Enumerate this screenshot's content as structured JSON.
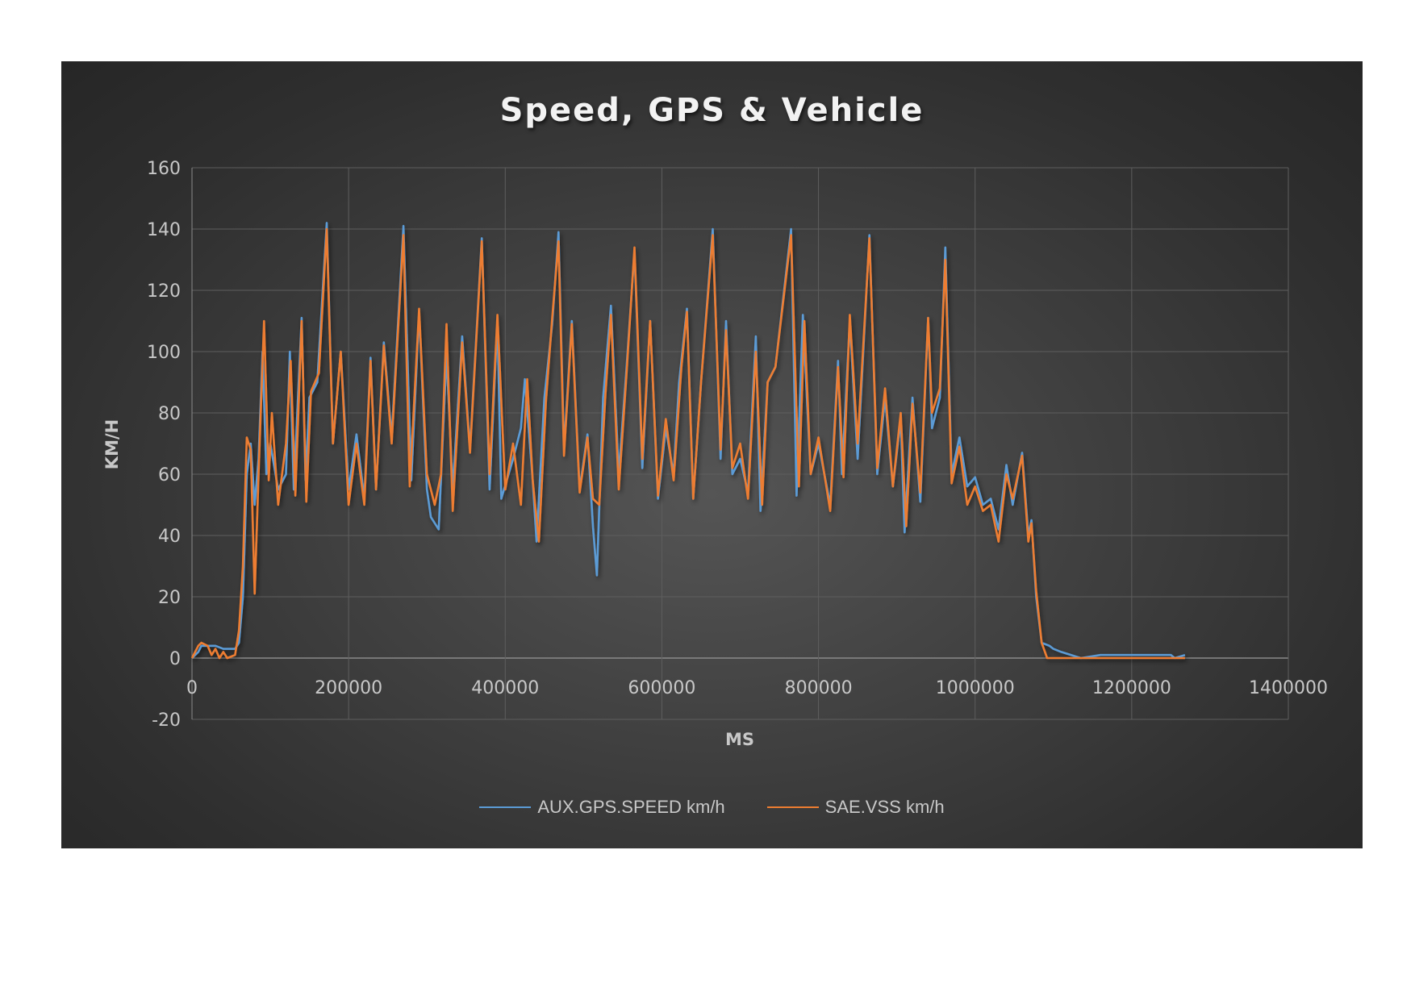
{
  "chart": {
    "title": "Speed, GPS & Vehicle",
    "xlabel": "MS",
    "ylabel": "KM/H",
    "y_ticks": [
      "160",
      "140",
      "120",
      "100",
      "80",
      "60",
      "40",
      "20",
      "0",
      "-20"
    ],
    "x_ticks": [
      "0",
      "200000",
      "400000",
      "600000",
      "800000",
      "1000000",
      "1200000",
      "1400000"
    ],
    "background": "#2f2f2f",
    "legend": [
      {
        "label": "AUX.GPS.SPEED km/h",
        "color": "#5b9bd5"
      },
      {
        "label": "SAE.VSS km/h",
        "color": "#ed7d31"
      }
    ]
  },
  "chart_data": {
    "type": "line",
    "title": "Speed, GPS & Vehicle",
    "xlabel": "MS",
    "ylabel": "KM/H",
    "xlim": [
      0,
      1400000
    ],
    "ylim": [
      -20,
      160
    ],
    "x_ticks": [
      0,
      200000,
      400000,
      600000,
      800000,
      1000000,
      1200000,
      1400000
    ],
    "y_ticks": [
      -20,
      0,
      20,
      40,
      60,
      80,
      100,
      120,
      140,
      160
    ],
    "grid": true,
    "legend_position": "bottom",
    "series": [
      {
        "name": "AUX.GPS.SPEED km/h",
        "color": "#5b9bd5",
        "points": [
          [
            0,
            0
          ],
          [
            8000,
            2
          ],
          [
            12000,
            4
          ],
          [
            30000,
            4
          ],
          [
            40000,
            3
          ],
          [
            55000,
            3
          ],
          [
            60000,
            5
          ],
          [
            65000,
            20
          ],
          [
            70000,
            60
          ],
          [
            75000,
            70
          ],
          [
            80000,
            50
          ],
          [
            85000,
            65
          ],
          [
            90000,
            100
          ],
          [
            95000,
            60
          ],
          [
            100000,
            70
          ],
          [
            110000,
            55
          ],
          [
            120000,
            60
          ],
          [
            125000,
            100
          ],
          [
            130000,
            55
          ],
          [
            140000,
            111
          ],
          [
            145000,
            58
          ],
          [
            150000,
            85
          ],
          [
            160000,
            90
          ],
          [
            172000,
            142
          ],
          [
            180000,
            70
          ],
          [
            190000,
            100
          ],
          [
            200000,
            55
          ],
          [
            210000,
            73
          ],
          [
            220000,
            52
          ],
          [
            228000,
            98
          ],
          [
            235000,
            55
          ],
          [
            245000,
            103
          ],
          [
            255000,
            72
          ],
          [
            270000,
            141
          ],
          [
            280000,
            58
          ],
          [
            290000,
            113
          ],
          [
            300000,
            55
          ],
          [
            305000,
            46
          ],
          [
            315000,
            42
          ],
          [
            325000,
            99
          ],
          [
            333000,
            55
          ],
          [
            345000,
            105
          ],
          [
            355000,
            68
          ],
          [
            370000,
            137
          ],
          [
            380000,
            55
          ],
          [
            390000,
            110
          ],
          [
            395000,
            52
          ],
          [
            410000,
            65
          ],
          [
            420000,
            75
          ],
          [
            425000,
            91
          ],
          [
            435000,
            58
          ],
          [
            440000,
            38
          ],
          [
            450000,
            85
          ],
          [
            460000,
            109
          ],
          [
            468000,
            139
          ],
          [
            475000,
            68
          ],
          [
            485000,
            110
          ],
          [
            495000,
            55
          ],
          [
            505000,
            73
          ],
          [
            512000,
            43
          ],
          [
            517000,
            27
          ],
          [
            525000,
            85
          ],
          [
            535000,
            115
          ],
          [
            545000,
            60
          ],
          [
            555000,
            95
          ],
          [
            565000,
            133
          ],
          [
            575000,
            62
          ],
          [
            585000,
            110
          ],
          [
            595000,
            52
          ],
          [
            605000,
            75
          ],
          [
            615000,
            60
          ],
          [
            622000,
            90
          ],
          [
            632000,
            114
          ],
          [
            640000,
            52
          ],
          [
            650000,
            90
          ],
          [
            665000,
            140
          ],
          [
            675000,
            65
          ],
          [
            682000,
            110
          ],
          [
            690000,
            60
          ],
          [
            700000,
            65
          ],
          [
            710000,
            54
          ],
          [
            720000,
            105
          ],
          [
            726000,
            48
          ],
          [
            735000,
            90
          ],
          [
            745000,
            95
          ],
          [
            765000,
            140
          ],
          [
            772000,
            53
          ],
          [
            780000,
            112
          ],
          [
            790000,
            60
          ],
          [
            800000,
            70
          ],
          [
            815000,
            50
          ],
          [
            825000,
            97
          ],
          [
            830000,
            60
          ],
          [
            840000,
            110
          ],
          [
            850000,
            65
          ],
          [
            865000,
            138
          ],
          [
            875000,
            60
          ],
          [
            885000,
            85
          ],
          [
            895000,
            56
          ],
          [
            905000,
            78
          ],
          [
            910000,
            41
          ],
          [
            920000,
            85
          ],
          [
            930000,
            51
          ],
          [
            940000,
            111
          ],
          [
            945000,
            75
          ],
          [
            955000,
            85
          ],
          [
            962000,
            134
          ],
          [
            970000,
            60
          ],
          [
            980000,
            72
          ],
          [
            990000,
            56
          ],
          [
            1000000,
            59
          ],
          [
            1010000,
            50
          ],
          [
            1020000,
            52
          ],
          [
            1030000,
            42
          ],
          [
            1040000,
            63
          ],
          [
            1048000,
            50
          ],
          [
            1060000,
            67
          ],
          [
            1068000,
            40
          ],
          [
            1072000,
            45
          ],
          [
            1078000,
            20
          ],
          [
            1085000,
            5
          ],
          [
            1095000,
            4
          ],
          [
            1100000,
            3
          ],
          [
            1110000,
            2
          ],
          [
            1135000,
            0
          ],
          [
            1160000,
            1
          ],
          [
            1250000,
            1
          ],
          [
            1255000,
            0
          ],
          [
            1268000,
            1
          ]
        ]
      },
      {
        "name": "SAE.VSS km/h",
        "color": "#ed7d31",
        "points": [
          [
            0,
            0
          ],
          [
            8000,
            4
          ],
          [
            12000,
            5
          ],
          [
            20000,
            4
          ],
          [
            25000,
            1
          ],
          [
            30000,
            3
          ],
          [
            35000,
            0
          ],
          [
            40000,
            2
          ],
          [
            45000,
            0
          ],
          [
            55000,
            1
          ],
          [
            60000,
            9
          ],
          [
            65000,
            30
          ],
          [
            70000,
            72
          ],
          [
            75000,
            68
          ],
          [
            80000,
            21
          ],
          [
            85000,
            60
          ],
          [
            92000,
            110
          ],
          [
            98000,
            58
          ],
          [
            102000,
            80
          ],
          [
            110000,
            50
          ],
          [
            120000,
            70
          ],
          [
            126000,
            97
          ],
          [
            132000,
            53
          ],
          [
            140000,
            110
          ],
          [
            146000,
            51
          ],
          [
            152000,
            87
          ],
          [
            162000,
            93
          ],
          [
            172000,
            140
          ],
          [
            180000,
            70
          ],
          [
            190000,
            100
          ],
          [
            200000,
            50
          ],
          [
            210000,
            70
          ],
          [
            220000,
            50
          ],
          [
            228000,
            97
          ],
          [
            235000,
            55
          ],
          [
            245000,
            102
          ],
          [
            255000,
            70
          ],
          [
            270000,
            138
          ],
          [
            278000,
            56
          ],
          [
            290000,
            114
          ],
          [
            300000,
            60
          ],
          [
            310000,
            50
          ],
          [
            318000,
            60
          ],
          [
            325000,
            109
          ],
          [
            333000,
            48
          ],
          [
            345000,
            103
          ],
          [
            355000,
            67
          ],
          [
            370000,
            136
          ],
          [
            380000,
            60
          ],
          [
            390000,
            112
          ],
          [
            400000,
            55
          ],
          [
            410000,
            70
          ],
          [
            420000,
            50
          ],
          [
            428000,
            91
          ],
          [
            435000,
            58
          ],
          [
            443000,
            38
          ],
          [
            452000,
            84
          ],
          [
            460000,
            111
          ],
          [
            468000,
            136
          ],
          [
            475000,
            66
          ],
          [
            485000,
            109
          ],
          [
            495000,
            54
          ],
          [
            505000,
            72
          ],
          [
            512000,
            52
          ],
          [
            520000,
            50
          ],
          [
            528000,
            86
          ],
          [
            535000,
            112
          ],
          [
            545000,
            55
          ],
          [
            555000,
            93
          ],
          [
            565000,
            134
          ],
          [
            575000,
            65
          ],
          [
            585000,
            110
          ],
          [
            595000,
            53
          ],
          [
            605000,
            78
          ],
          [
            615000,
            58
          ],
          [
            625000,
            95
          ],
          [
            632000,
            113
          ],
          [
            640000,
            52
          ],
          [
            650000,
            90
          ],
          [
            665000,
            138
          ],
          [
            675000,
            68
          ],
          [
            682000,
            107
          ],
          [
            690000,
            62
          ],
          [
            700000,
            70
          ],
          [
            710000,
            52
          ],
          [
            720000,
            100
          ],
          [
            728000,
            50
          ],
          [
            735000,
            90
          ],
          [
            745000,
            95
          ],
          [
            765000,
            138
          ],
          [
            775000,
            56
          ],
          [
            782000,
            110
          ],
          [
            790000,
            60
          ],
          [
            800000,
            72
          ],
          [
            815000,
            48
          ],
          [
            825000,
            95
          ],
          [
            832000,
            59
          ],
          [
            840000,
            112
          ],
          [
            850000,
            70
          ],
          [
            865000,
            137
          ],
          [
            875000,
            62
          ],
          [
            885000,
            88
          ],
          [
            895000,
            56
          ],
          [
            905000,
            80
          ],
          [
            912000,
            43
          ],
          [
            920000,
            83
          ],
          [
            930000,
            54
          ],
          [
            940000,
            111
          ],
          [
            945000,
            80
          ],
          [
            955000,
            88
          ],
          [
            962000,
            130
          ],
          [
            970000,
            57
          ],
          [
            980000,
            69
          ],
          [
            990000,
            50
          ],
          [
            1000000,
            56
          ],
          [
            1010000,
            48
          ],
          [
            1020000,
            50
          ],
          [
            1030000,
            38
          ],
          [
            1040000,
            60
          ],
          [
            1048000,
            52
          ],
          [
            1060000,
            66
          ],
          [
            1068000,
            38
          ],
          [
            1072000,
            44
          ],
          [
            1078000,
            22
          ],
          [
            1085000,
            5
          ],
          [
            1092000,
            0
          ],
          [
            1268000,
            0
          ]
        ]
      }
    ]
  }
}
